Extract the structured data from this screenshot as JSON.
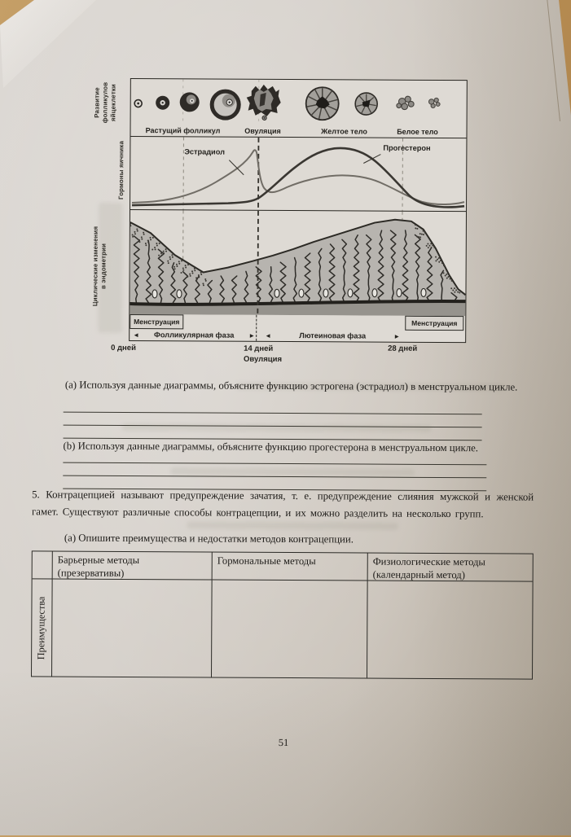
{
  "photo": {
    "page_number": "51"
  },
  "diagram": {
    "follicle_panel": {
      "side_label": "Развитие\nфолликулов\nяйцеклетки",
      "labels": [
        "Растущий фолликул",
        "Овуляция",
        "Желтое тело",
        "Белое тело"
      ]
    },
    "hormone_panel": {
      "side_label": "Гормоны яичника",
      "estradiol_label": "Эстрадиол",
      "progesterone_label": "Прогестерон"
    },
    "endometrium_panel": {
      "side_label": "Циклические изменения\nв эндометрии",
      "menstruation_left": "Менструация",
      "menstruation_right": "Менструация",
      "follicular_phase": "Фолликулярная фаза",
      "luteal_phase": "Лютеиновая фаза",
      "arrow_left": "◄",
      "arrow_right": "►"
    },
    "timeline": {
      "day0": "0 дней",
      "day14": "14 дней",
      "ovulation_label": "Овуляция",
      "day28": "28 дней"
    }
  },
  "chart_data": {
    "type": "line",
    "title": "Гормоны яичника",
    "x_ticks": [
      "0 дней",
      "14 дней (Овуляция)",
      "28 дней"
    ],
    "series": [
      {
        "name": "Эстрадиол",
        "shape": "низкий в начале цикла, постепенно растет, резкий пик перед овуляцией (~день 13), резкое падение при овуляции, меньший широкий подъем в лютеиновой фазе (~день 21), спад к дню 28"
      },
      {
        "name": "Прогестерон",
        "shape": "низкий в фолликулярной фазе, растет после овуляции, широкий высокий пик около дня 20-22, падение к дню 26-28"
      }
    ],
    "phases": [
      "Менструация (дни 0-5)",
      "Фолликулярная фаза",
      "Овуляция (день 14)",
      "Лютеиновая фаза",
      "Менструация (с ~дня 26)"
    ],
    "legend_position": "labels on curves",
    "grid": false
  },
  "questions": {
    "a_text": "(a) Используя данные диаграммы, объясните функцию эстрогена (эстрадиол) в менструальном цикле.",
    "b_text": "(b) Используя данные диаграммы, объясните функцию прогестерона в менструальном цикле.",
    "q5_text": "5. Контрацепцией называют предупреждение зачатия, т. е. предупреждение слияния мужской и женской гамет. Существуют различные способы контрацепции, и их можно разделить на несколько групп.",
    "q5a_text": "(а) Опишите преимущества и недостатки методов контрацепции."
  },
  "table": {
    "headers": [
      "Барьерные методы\n(презервативы)",
      "Гормональные методы",
      "Физиологические методы\n(календарный метод)"
    ],
    "row_label": "Преимущества",
    "cells": [
      "",
      "",
      ""
    ]
  }
}
